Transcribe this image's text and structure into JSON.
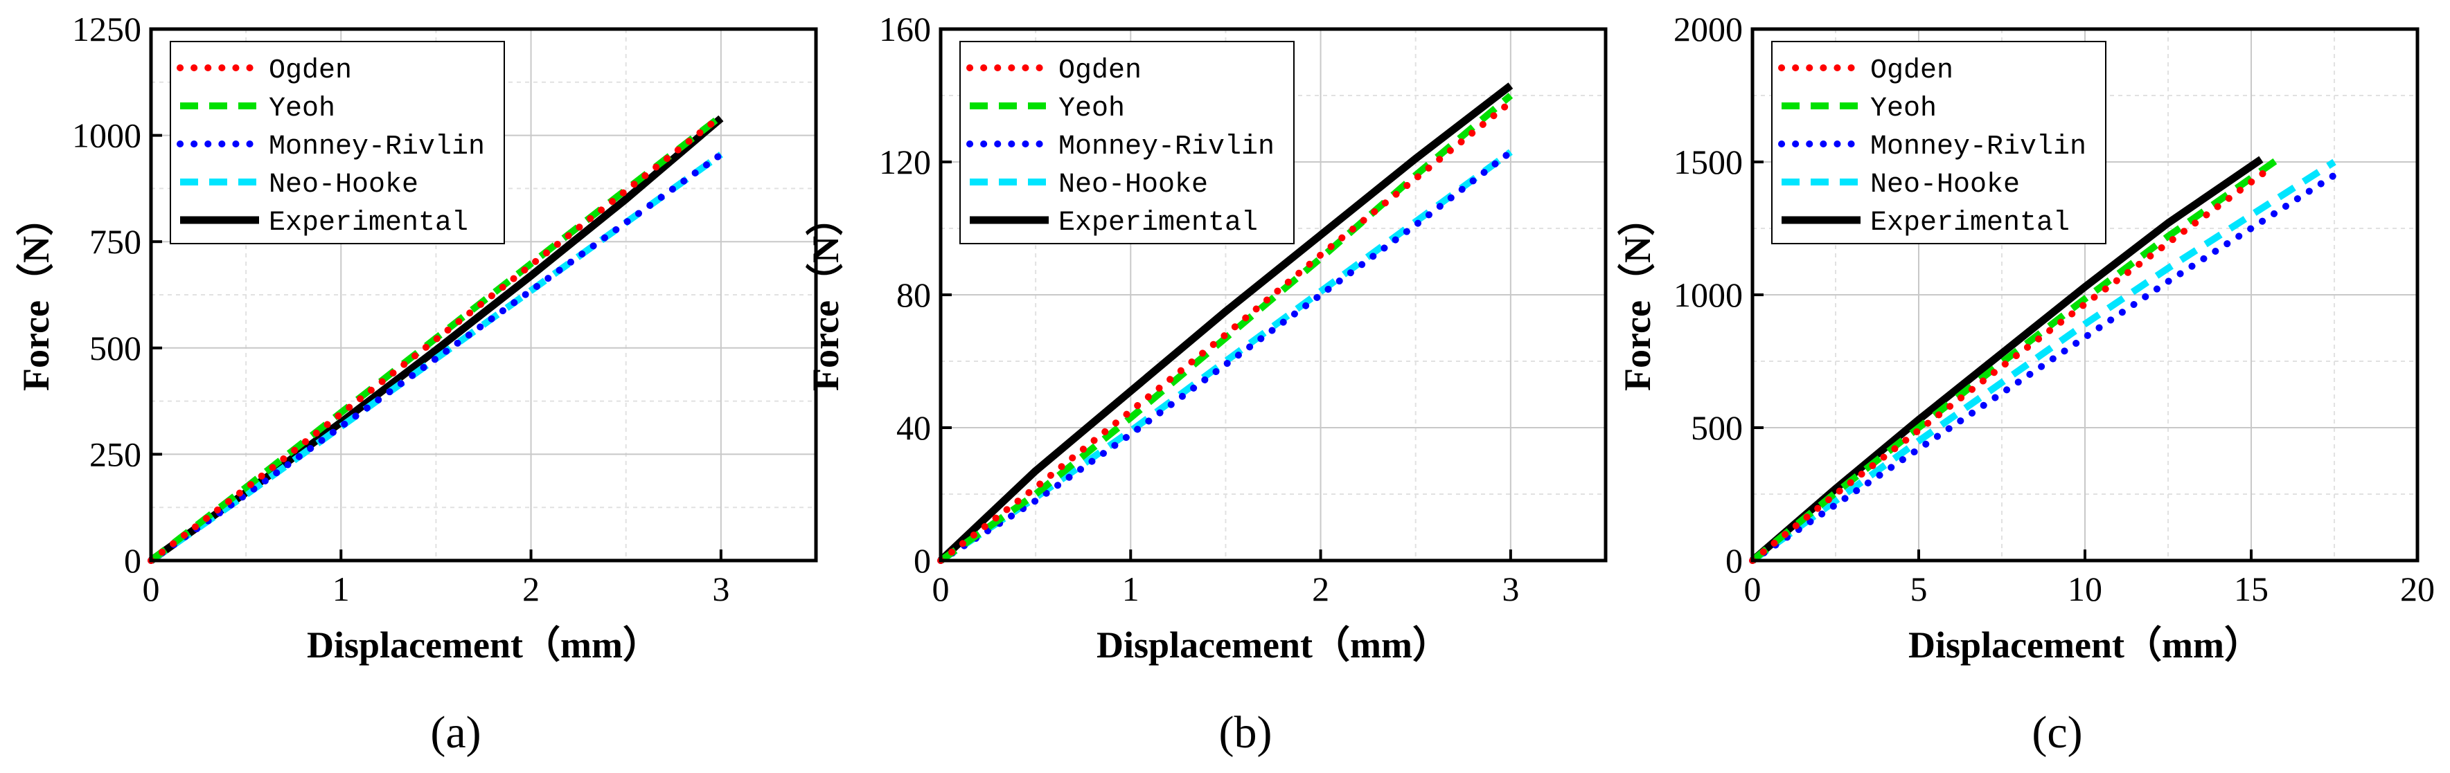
{
  "chart_data": [
    {
      "type": "line",
      "panel_label": "(a)",
      "xlabel": "Displacement（mm）",
      "ylabel": "Force（N）",
      "xlim": [
        0,
        3.5
      ],
      "ylim": [
        0,
        1250
      ],
      "xticks": [
        0,
        1,
        2,
        3
      ],
      "yticks": [
        0,
        250,
        500,
        750,
        1000,
        1250
      ],
      "grid": true,
      "legend_position": "top-left",
      "series": [
        {
          "name": "Ogden",
          "color": "#ff0000",
          "style": "dotted",
          "x": [
            0,
            0.5,
            1,
            1.5,
            2,
            2.5,
            3
          ],
          "y": [
            0,
            170,
            345,
            520,
            695,
            870,
            1045
          ]
        },
        {
          "name": "Yeoh",
          "color": "#00e000",
          "style": "dashed",
          "x": [
            0,
            0.5,
            1,
            1.5,
            2,
            2.5,
            3
          ],
          "y": [
            0,
            172,
            348,
            523,
            698,
            872,
            1045
          ]
        },
        {
          "name": "Monney-Rivlin",
          "color": "#0000ff",
          "style": "dotted",
          "x": [
            0,
            0.5,
            1,
            1.5,
            2,
            2.5,
            3
          ],
          "y": [
            0,
            155,
            315,
            475,
            635,
            795,
            955
          ]
        },
        {
          "name": "Neo-Hooke",
          "color": "#00e5ff",
          "style": "dashed",
          "x": [
            0,
            0.5,
            1,
            1.5,
            2,
            2.5,
            3
          ],
          "y": [
            0,
            155,
            315,
            475,
            635,
            795,
            955
          ]
        },
        {
          "name": "Experimental",
          "color": "#000000",
          "style": "solid",
          "x": [
            0,
            0.5,
            1,
            1.5,
            2,
            2.5,
            3
          ],
          "y": [
            0,
            160,
            325,
            495,
            670,
            850,
            1040
          ]
        }
      ]
    },
    {
      "type": "line",
      "panel_label": "(b)",
      "xlabel": "Displacement（mm）",
      "ylabel": "Force（N）",
      "xlim": [
        0,
        3.5
      ],
      "ylim": [
        0,
        160
      ],
      "xticks": [
        0,
        1,
        2,
        3
      ],
      "yticks": [
        0,
        40,
        80,
        120,
        160
      ],
      "grid": true,
      "legend_position": "top-left",
      "series": [
        {
          "name": "Ogden",
          "color": "#ff0000",
          "style": "dotted",
          "x": [
            0,
            0.5,
            1,
            1.5,
            2,
            2.5,
            3
          ],
          "y": [
            0,
            22,
            45,
            68,
            92,
            115,
            138
          ]
        },
        {
          "name": "Yeoh",
          "color": "#00e000",
          "style": "dashed",
          "x": [
            0,
            0.5,
            1,
            1.5,
            2,
            2.5,
            3
          ],
          "y": [
            0,
            20,
            43,
            67,
            91,
            116,
            140
          ]
        },
        {
          "name": "Monney-Rivlin",
          "color": "#0000ff",
          "style": "dotted",
          "x": [
            0,
            0.5,
            1,
            1.5,
            2,
            2.5,
            3
          ],
          "y": [
            0,
            18,
            38,
            59,
            80,
            101,
            123
          ]
        },
        {
          "name": "Neo-Hooke",
          "color": "#00e5ff",
          "style": "dashed",
          "x": [
            0,
            0.5,
            1,
            1.5,
            2,
            2.5,
            3
          ],
          "y": [
            0,
            19,
            39,
            60,
            81,
            102,
            123
          ]
        },
        {
          "name": "Experimental",
          "color": "#000000",
          "style": "solid",
          "x": [
            0,
            0.5,
            1,
            1.5,
            2,
            2.5,
            3
          ],
          "y": [
            0,
            27,
            51,
            75,
            98,
            121,
            143
          ]
        }
      ]
    },
    {
      "type": "line",
      "panel_label": "(c)",
      "xlabel": "Displacement（mm）",
      "ylabel": "Force（N）",
      "xlim": [
        0,
        20
      ],
      "ylim": [
        0,
        2000
      ],
      "xticks": [
        0,
        5,
        10,
        15,
        20
      ],
      "yticks": [
        0,
        500,
        1000,
        1500,
        2000
      ],
      "grid": true,
      "legend_position": "top-left",
      "series": [
        {
          "name": "Ogden",
          "color": "#ff0000",
          "style": "dotted",
          "x": [
            0,
            2.5,
            5,
            7.5,
            10,
            12.5,
            15.5
          ],
          "y": [
            0,
            250,
            490,
            730,
            965,
            1195,
            1470
          ]
        },
        {
          "name": "Yeoh",
          "color": "#00e000",
          "style": "dashed",
          "x": [
            0,
            2.5,
            5,
            7.5,
            10,
            12.5,
            15.8
          ],
          "y": [
            0,
            255,
            500,
            745,
            985,
            1220,
            1510
          ]
        },
        {
          "name": "Monney-Rivlin",
          "color": "#0000ff",
          "style": "dotted",
          "x": [
            0,
            2.5,
            5,
            7.5,
            10,
            12.5,
            15,
            17.5
          ],
          "y": [
            0,
            210,
            420,
            630,
            840,
            1050,
            1250,
            1450
          ]
        },
        {
          "name": "Neo-Hooke",
          "color": "#00e5ff",
          "style": "dashed",
          "x": [
            0,
            2.5,
            5,
            7.5,
            10,
            12.5,
            15,
            17.5
          ],
          "y": [
            0,
            225,
            450,
            670,
            890,
            1100,
            1300,
            1500
          ]
        },
        {
          "name": "Experimental",
          "color": "#000000",
          "style": "solid",
          "x": [
            0,
            2.5,
            5,
            7.5,
            10,
            12.5,
            15.3
          ],
          "y": [
            0,
            270,
            530,
            780,
            1030,
            1270,
            1510
          ]
        }
      ]
    }
  ]
}
